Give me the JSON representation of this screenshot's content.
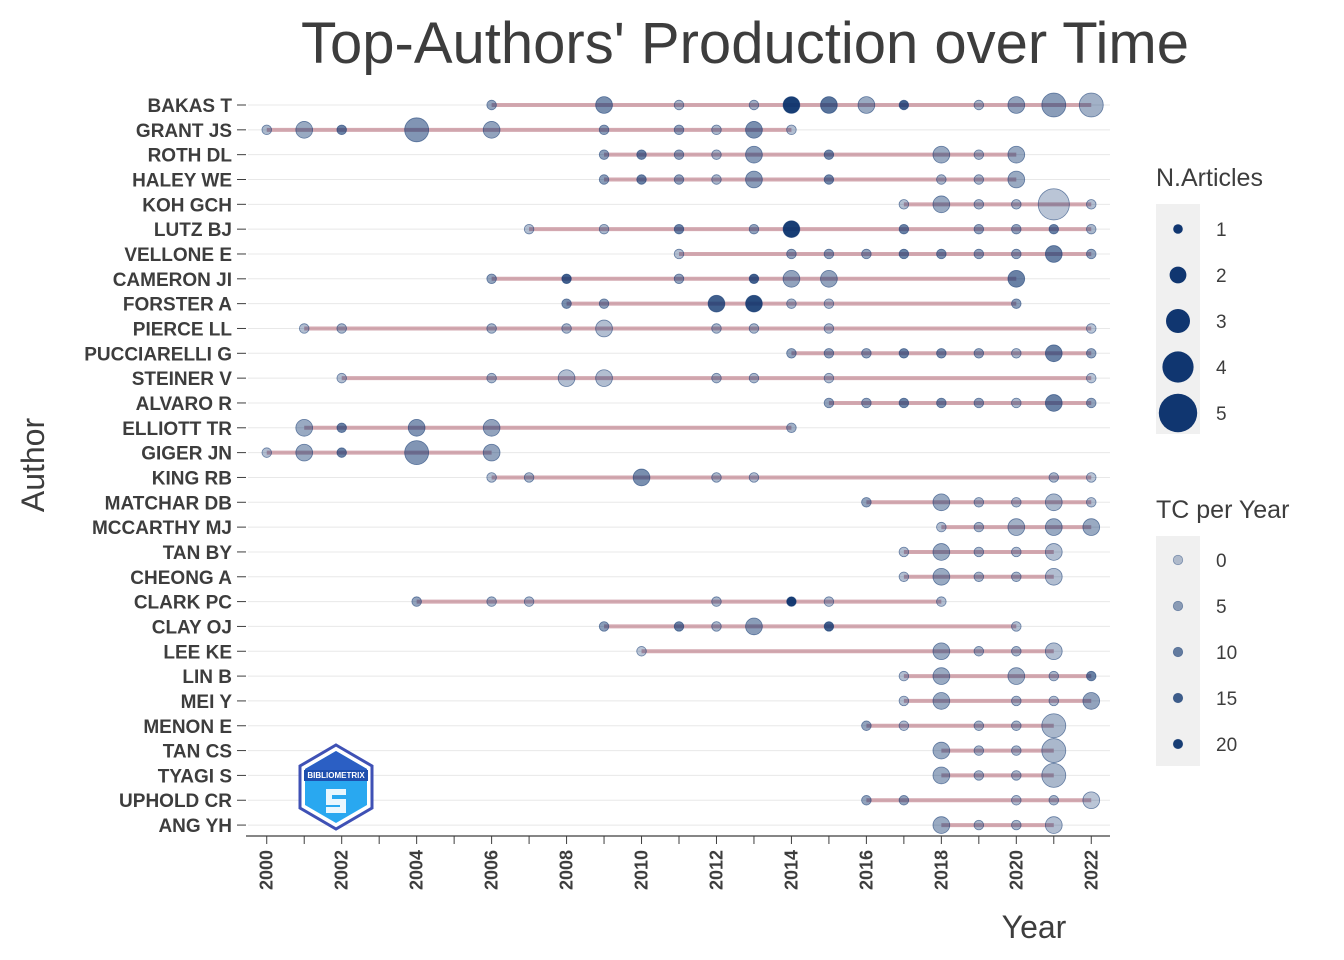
{
  "chart_data": {
    "type": "scatter",
    "title": "Top-Authors' Production over Time",
    "xlabel": "Year",
    "ylabel": "Author",
    "xlim": [
      1999.5,
      2022.5
    ],
    "x_ticks": [
      2000,
      2002,
      2004,
      2006,
      2008,
      2010,
      2012,
      2014,
      2016,
      2018,
      2020,
      2022
    ],
    "size_legend": {
      "title": "N.Articles",
      "values": [
        1,
        2,
        3,
        4,
        5
      ]
    },
    "color_legend": {
      "title": "TC per Year",
      "values": [
        0,
        5,
        10,
        15,
        20
      ]
    },
    "legend_position": "right",
    "grid": true,
    "authors": [
      {
        "name": "BAKAS T",
        "range": [
          2006,
          2022
        ],
        "points": [
          [
            2006,
            1,
            5
          ],
          [
            2009,
            2,
            8
          ],
          [
            2011,
            1,
            2
          ],
          [
            2013,
            1,
            3
          ],
          [
            2014,
            2,
            20
          ],
          [
            2015,
            2,
            12
          ],
          [
            2016,
            2,
            4
          ],
          [
            2017,
            1,
            15
          ],
          [
            2019,
            1,
            2
          ],
          [
            2020,
            2,
            5
          ],
          [
            2021,
            3,
            6
          ],
          [
            2022,
            3,
            3
          ]
        ]
      },
      {
        "name": "GRANT JS",
        "range": [
          2000,
          2014
        ],
        "points": [
          [
            2000,
            1,
            2
          ],
          [
            2001,
            2,
            4
          ],
          [
            2002,
            1,
            10
          ],
          [
            2004,
            3,
            7
          ],
          [
            2006,
            2,
            5
          ],
          [
            2009,
            1,
            6
          ],
          [
            2011,
            1,
            5
          ],
          [
            2012,
            1,
            2
          ],
          [
            2013,
            2,
            8
          ],
          [
            2014,
            1,
            1
          ]
        ]
      },
      {
        "name": "ROTH DL",
        "range": [
          2009,
          2020
        ],
        "points": [
          [
            2009,
            1,
            6
          ],
          [
            2010,
            1,
            10
          ],
          [
            2011,
            1,
            5
          ],
          [
            2012,
            1,
            2
          ],
          [
            2013,
            2,
            6
          ],
          [
            2015,
            1,
            9
          ],
          [
            2018,
            2,
            4
          ],
          [
            2019,
            1,
            2
          ],
          [
            2020,
            2,
            4
          ]
        ]
      },
      {
        "name": "HALEY WE",
        "range": [
          2009,
          2020
        ],
        "points": [
          [
            2009,
            1,
            6
          ],
          [
            2010,
            1,
            10
          ],
          [
            2011,
            1,
            5
          ],
          [
            2012,
            1,
            2
          ],
          [
            2013,
            2,
            6
          ],
          [
            2015,
            1,
            9
          ],
          [
            2018,
            1,
            2
          ],
          [
            2019,
            1,
            2
          ],
          [
            2020,
            2,
            4
          ]
        ]
      },
      {
        "name": "KOH GCH",
        "range": [
          2017,
          2022
        ],
        "points": [
          [
            2017,
            1,
            1
          ],
          [
            2018,
            2,
            4
          ],
          [
            2019,
            1,
            2
          ],
          [
            2020,
            1,
            2
          ],
          [
            2021,
            4,
            0
          ],
          [
            2022,
            1,
            1
          ]
        ]
      },
      {
        "name": "LUTZ BJ",
        "range": [
          2007,
          2022
        ],
        "points": [
          [
            2007,
            1,
            1
          ],
          [
            2009,
            1,
            2
          ],
          [
            2011,
            1,
            10
          ],
          [
            2013,
            1,
            5
          ],
          [
            2014,
            2,
            20
          ],
          [
            2017,
            1,
            10
          ],
          [
            2019,
            1,
            5
          ],
          [
            2020,
            1,
            5
          ],
          [
            2021,
            1,
            10
          ],
          [
            2022,
            1,
            2
          ]
        ]
      },
      {
        "name": "VELLONE E",
        "range": [
          2011,
          2022
        ],
        "points": [
          [
            2011,
            1,
            1
          ],
          [
            2014,
            1,
            5
          ],
          [
            2015,
            1,
            5
          ],
          [
            2016,
            1,
            5
          ],
          [
            2017,
            1,
            10
          ],
          [
            2018,
            1,
            8
          ],
          [
            2019,
            1,
            5
          ],
          [
            2020,
            1,
            5
          ],
          [
            2021,
            2,
            10
          ],
          [
            2022,
            1,
            5
          ]
        ]
      },
      {
        "name": "CAMERON JI",
        "range": [
          2006,
          2020
        ],
        "points": [
          [
            2006,
            1,
            5
          ],
          [
            2008,
            1,
            15
          ],
          [
            2011,
            1,
            5
          ],
          [
            2013,
            1,
            15
          ],
          [
            2014,
            2,
            5
          ],
          [
            2015,
            2,
            5
          ],
          [
            2020,
            2,
            10
          ]
        ]
      },
      {
        "name": "FORSTER A",
        "range": [
          2008,
          2020
        ],
        "points": [
          [
            2008,
            1,
            8
          ],
          [
            2009,
            1,
            6
          ],
          [
            2012,
            2,
            15
          ],
          [
            2013,
            2,
            18
          ],
          [
            2014,
            1,
            2
          ],
          [
            2015,
            1,
            1
          ],
          [
            2020,
            1,
            6
          ]
        ]
      },
      {
        "name": "PIERCE LL",
        "range": [
          2001,
          2022
        ],
        "points": [
          [
            2001,
            1,
            1
          ],
          [
            2002,
            1,
            2
          ],
          [
            2006,
            1,
            2
          ],
          [
            2008,
            1,
            2
          ],
          [
            2009,
            2,
            1
          ],
          [
            2012,
            1,
            2
          ],
          [
            2013,
            1,
            2
          ],
          [
            2015,
            1,
            1
          ],
          [
            2022,
            1,
            0
          ]
        ]
      },
      {
        "name": "PUCCIARELLI G",
        "range": [
          2014,
          2022
        ],
        "points": [
          [
            2014,
            1,
            5
          ],
          [
            2015,
            1,
            5
          ],
          [
            2016,
            1,
            5
          ],
          [
            2017,
            1,
            10
          ],
          [
            2018,
            1,
            8
          ],
          [
            2019,
            1,
            5
          ],
          [
            2020,
            1,
            2
          ],
          [
            2021,
            2,
            10
          ],
          [
            2022,
            1,
            5
          ]
        ]
      },
      {
        "name": "STEINER V",
        "range": [
          2002,
          2022
        ],
        "points": [
          [
            2002,
            1,
            1
          ],
          [
            2006,
            1,
            2
          ],
          [
            2008,
            2,
            1
          ],
          [
            2009,
            2,
            1
          ],
          [
            2012,
            1,
            2
          ],
          [
            2013,
            1,
            2
          ],
          [
            2015,
            1,
            1
          ],
          [
            2022,
            1,
            0
          ]
        ]
      },
      {
        "name": "ALVARO R",
        "range": [
          2015,
          2022
        ],
        "points": [
          [
            2015,
            1,
            5
          ],
          [
            2016,
            1,
            5
          ],
          [
            2017,
            1,
            10
          ],
          [
            2018,
            1,
            8
          ],
          [
            2019,
            1,
            5
          ],
          [
            2020,
            1,
            2
          ],
          [
            2021,
            2,
            10
          ],
          [
            2022,
            1,
            5
          ]
        ]
      },
      {
        "name": "ELLIOTT TR",
        "range": [
          2001,
          2014
        ],
        "points": [
          [
            2001,
            2,
            4
          ],
          [
            2002,
            1,
            10
          ],
          [
            2004,
            2,
            7
          ],
          [
            2006,
            2,
            5
          ],
          [
            2014,
            1,
            3
          ]
        ]
      },
      {
        "name": "GIGER JN",
        "range": [
          2000,
          2006
        ],
        "points": [
          [
            2000,
            1,
            1
          ],
          [
            2001,
            2,
            4
          ],
          [
            2002,
            1,
            10
          ],
          [
            2004,
            3,
            7
          ],
          [
            2006,
            2,
            5
          ]
        ]
      },
      {
        "name": "KING RB",
        "range": [
          2006,
          2022
        ],
        "points": [
          [
            2006,
            1,
            1
          ],
          [
            2007,
            1,
            2
          ],
          [
            2010,
            2,
            8
          ],
          [
            2012,
            1,
            2
          ],
          [
            2013,
            1,
            1
          ],
          [
            2021,
            1,
            2
          ],
          [
            2022,
            1,
            0
          ]
        ]
      },
      {
        "name": "MATCHAR DB",
        "range": [
          2016,
          2022
        ],
        "points": [
          [
            2016,
            1,
            5
          ],
          [
            2018,
            2,
            4
          ],
          [
            2019,
            1,
            2
          ],
          [
            2020,
            1,
            1
          ],
          [
            2021,
            2,
            2
          ],
          [
            2022,
            1,
            1
          ]
        ]
      },
      {
        "name": "MCCARTHY MJ",
        "range": [
          2018,
          2022
        ],
        "points": [
          [
            2018,
            1,
            1
          ],
          [
            2019,
            1,
            2
          ],
          [
            2020,
            2,
            3
          ],
          [
            2021,
            2,
            4
          ],
          [
            2022,
            2,
            4
          ]
        ]
      },
      {
        "name": "TAN BY",
        "range": [
          2017,
          2021
        ],
        "points": [
          [
            2017,
            1,
            1
          ],
          [
            2018,
            2,
            4
          ],
          [
            2019,
            1,
            2
          ],
          [
            2020,
            1,
            1
          ],
          [
            2021,
            2,
            1
          ]
        ]
      },
      {
        "name": "CHEONG A",
        "range": [
          2017,
          2021
        ],
        "points": [
          [
            2017,
            1,
            1
          ],
          [
            2018,
            2,
            4
          ],
          [
            2019,
            1,
            2
          ],
          [
            2020,
            1,
            2
          ],
          [
            2021,
            2,
            1
          ]
        ]
      },
      {
        "name": "CLARK PC",
        "range": [
          2004,
          2018
        ],
        "points": [
          [
            2004,
            1,
            5
          ],
          [
            2006,
            1,
            2
          ],
          [
            2007,
            1,
            1
          ],
          [
            2012,
            1,
            2
          ],
          [
            2014,
            1,
            20
          ],
          [
            2015,
            1,
            1
          ],
          [
            2018,
            1,
            1
          ]
        ]
      },
      {
        "name": "CLAY OJ",
        "range": [
          2009,
          2020
        ],
        "points": [
          [
            2009,
            1,
            6
          ],
          [
            2011,
            1,
            10
          ],
          [
            2012,
            1,
            2
          ],
          [
            2013,
            2,
            6
          ],
          [
            2015,
            1,
            15
          ],
          [
            2020,
            1,
            1
          ]
        ]
      },
      {
        "name": "LEE KE",
        "range": [
          2010,
          2021
        ],
        "points": [
          [
            2010,
            1,
            0
          ],
          [
            2018,
            2,
            4
          ],
          [
            2019,
            1,
            2
          ],
          [
            2020,
            1,
            2
          ],
          [
            2021,
            2,
            1
          ]
        ]
      },
      {
        "name": "LIN B",
        "range": [
          2017,
          2022
        ],
        "points": [
          [
            2017,
            1,
            1
          ],
          [
            2018,
            2,
            4
          ],
          [
            2020,
            2,
            3
          ],
          [
            2021,
            1,
            2
          ],
          [
            2022,
            1,
            10
          ]
        ]
      },
      {
        "name": "MEI Y",
        "range": [
          2017,
          2022
        ],
        "points": [
          [
            2017,
            1,
            1
          ],
          [
            2018,
            2,
            4
          ],
          [
            2020,
            1,
            2
          ],
          [
            2021,
            1,
            1
          ],
          [
            2022,
            2,
            5
          ]
        ]
      },
      {
        "name": "MENON E",
        "range": [
          2016,
          2021
        ],
        "points": [
          [
            2016,
            1,
            5
          ],
          [
            2017,
            1,
            1
          ],
          [
            2019,
            1,
            2
          ],
          [
            2020,
            1,
            2
          ],
          [
            2021,
            3,
            2
          ]
        ]
      },
      {
        "name": "TAN CS",
        "range": [
          2018,
          2021
        ],
        "points": [
          [
            2018,
            2,
            4
          ],
          [
            2019,
            1,
            2
          ],
          [
            2020,
            1,
            2
          ],
          [
            2021,
            3,
            2
          ]
        ]
      },
      {
        "name": "TYAGI S",
        "range": [
          2018,
          2021
        ],
        "points": [
          [
            2018,
            2,
            4
          ],
          [
            2019,
            1,
            2
          ],
          [
            2020,
            1,
            2
          ],
          [
            2021,
            3,
            2
          ]
        ]
      },
      {
        "name": "UPHOLD CR",
        "range": [
          2016,
          2022
        ],
        "points": [
          [
            2016,
            1,
            5
          ],
          [
            2017,
            1,
            5
          ],
          [
            2020,
            1,
            1
          ],
          [
            2021,
            1,
            2
          ],
          [
            2022,
            2,
            0
          ]
        ]
      },
      {
        "name": "ANG YH",
        "range": [
          2018,
          2021
        ],
        "points": [
          [
            2018,
            2,
            4
          ],
          [
            2019,
            1,
            2
          ],
          [
            2020,
            1,
            2
          ],
          [
            2021,
            2,
            1
          ]
        ]
      }
    ]
  },
  "logo": {
    "icon": "bibliometrix-logo-icon",
    "text": "BIBLIOMETRIX"
  },
  "colors": {
    "point": "#08306b",
    "segment": "#c48b96",
    "legend_bg": "#f0f0f0",
    "axis": "#3d3d3d",
    "grid": "#e8e8e8"
  }
}
